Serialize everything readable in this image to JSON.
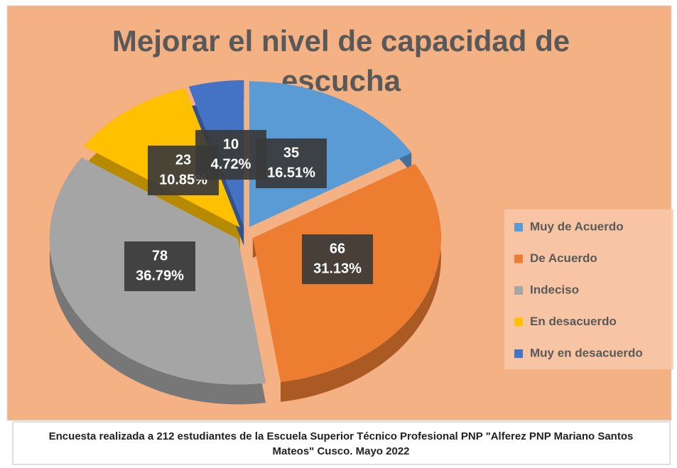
{
  "chart_data": {
    "type": "pie",
    "title": "Mejorar el nivel de capacidad de escucha",
    "categories": [
      "Muy de Acuerdo",
      "De Acuerdo",
      "Indeciso",
      "En desacuerdo",
      "Muy en desacuerdo"
    ],
    "values": [
      35,
      66,
      78,
      23,
      10
    ],
    "percentages": [
      16.51,
      31.13,
      36.79,
      10.85,
      4.72
    ],
    "percentage_labels": [
      "16.51%",
      "31.13%",
      "36.79%",
      "10.85%",
      "4.72%"
    ],
    "colors": [
      "#5b9bd5",
      "#ed7d31",
      "#a5a5a5",
      "#ffc000",
      "#4472c4"
    ],
    "legend": "right",
    "footnote": "Encuesta realizada a 212 estudiantes de la Escuela Superior Técnico Profesional PNP \"Alferez PNP Mariano Santos Mateos\" Cusco. Mayo 2022"
  }
}
